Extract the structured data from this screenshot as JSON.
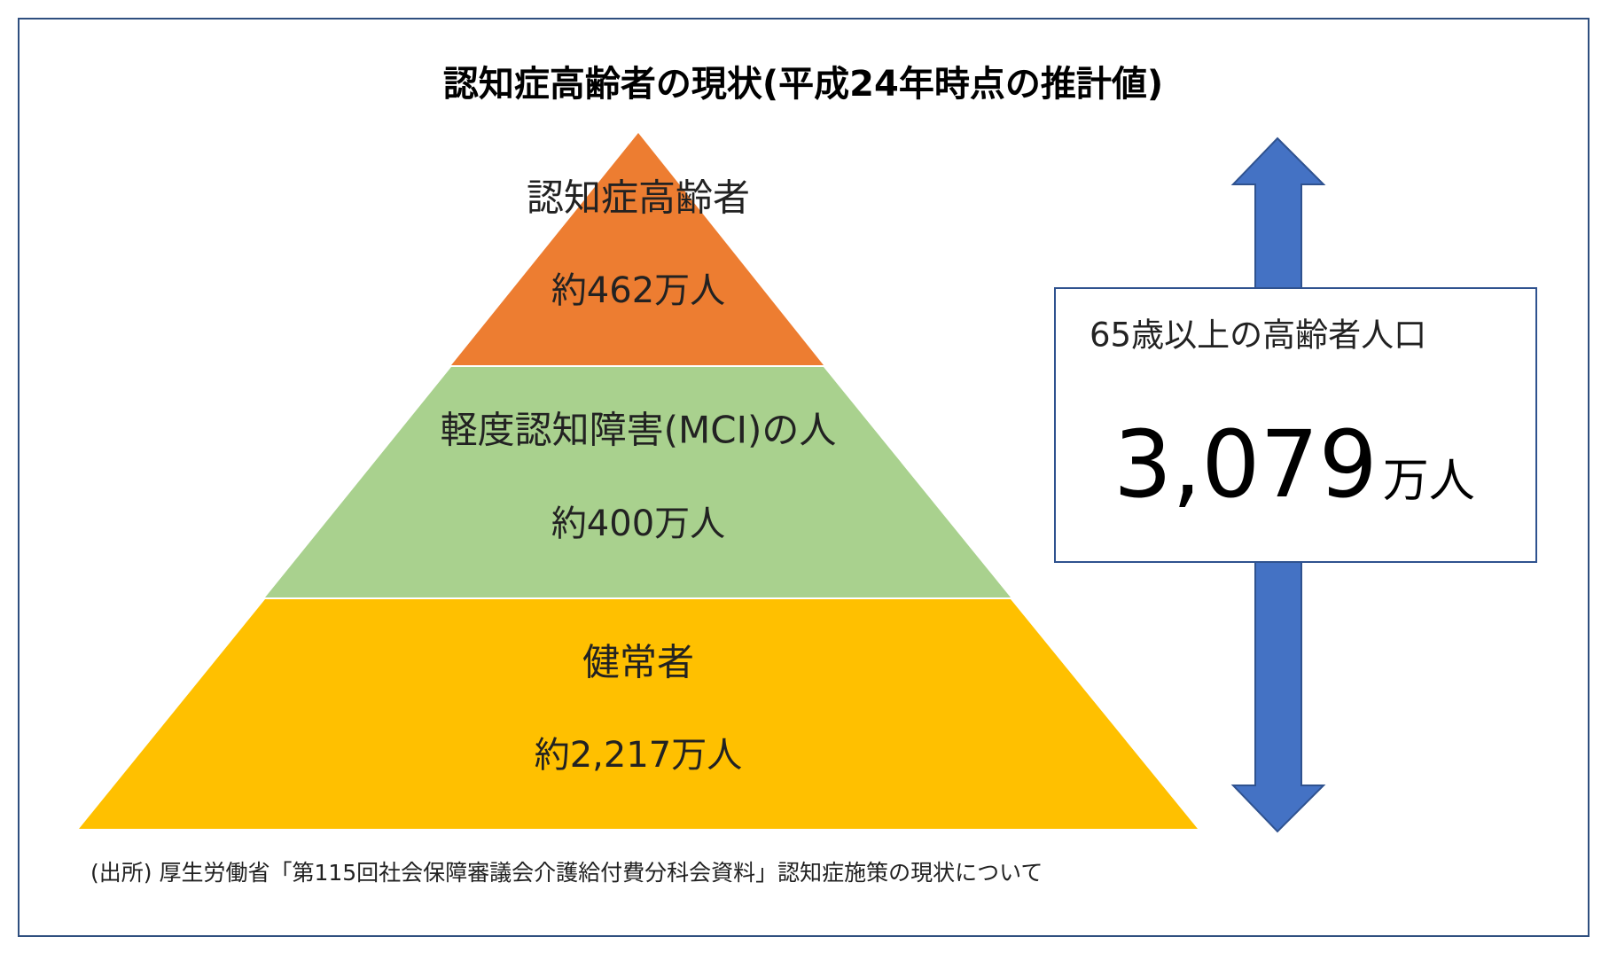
{
  "title": "認知症高齢者の現状(平成24年時点の推計値)",
  "pyramid": {
    "levels": [
      {
        "label": "認知症高齢者",
        "value": "約462万人"
      },
      {
        "label": "軽度認知障害(MCI)の人",
        "value": "約400万人"
      },
      {
        "label": "健常者",
        "value": "約2,217万人"
      }
    ]
  },
  "total": {
    "label": "65歳以上の高齢者人口",
    "value": "3,079",
    "unit": "万人"
  },
  "source": "(出所) 厚生労働省「第115回社会保障審議会介護給付費分科会資料」認知症施策の現状について"
}
